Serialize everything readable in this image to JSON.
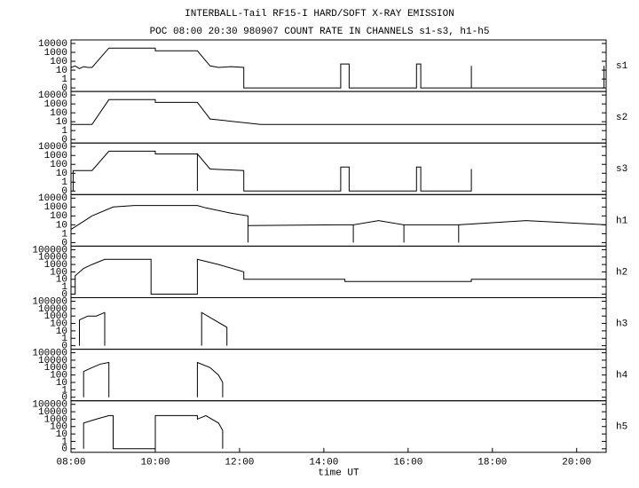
{
  "chart_data": [
    {
      "type": "line",
      "title": "INTERBALL-Tail RF15-I HARD/SOFT X-RAY EMISSION",
      "subtitle": "POC 08:00 20:30 980907  COUNT RATE IN CHANNELS s1-s3, h1-h5",
      "label": "s1",
      "log": true,
      "color": "#000000",
      "xlim": [
        8,
        20.7
      ],
      "ylim": [
        0,
        10000
      ],
      "yticks": [
        0,
        1,
        10,
        100,
        1000,
        10000
      ],
      "x": [
        8.0,
        8.1,
        8.2,
        8.3,
        8.4,
        8.5,
        8.9,
        10.0,
        10.0,
        11.0,
        11.3,
        11.5,
        11.8,
        12.1,
        12.1,
        14.4,
        14.4,
        14.6,
        14.6,
        16.2,
        16.2,
        16.3,
        16.3,
        17.5,
        17.5,
        17.5,
        20.65,
        20.65
      ],
      "values": [
        20,
        30,
        15,
        25,
        20,
        20,
        3000,
        3000,
        1500,
        1500,
        30,
        20,
        25,
        20,
        0,
        0,
        50,
        50,
        0,
        0,
        50,
        50,
        0,
        0,
        30,
        0,
        0,
        30
      ]
    },
    {
      "type": "line",
      "label": "s2",
      "log": true,
      "color": "#000000",
      "xlim": [
        8,
        20.7
      ],
      "ylim": [
        0,
        10000
      ],
      "yticks": [
        0,
        1,
        10,
        100,
        1000,
        10000
      ],
      "x": [
        8.0,
        8.5,
        8.9,
        10.0,
        10.0,
        11.0,
        11.3,
        12.5,
        13.0,
        14.5,
        16.0,
        18.0,
        20.7
      ],
      "values": [
        5,
        5,
        3000,
        3000,
        1500,
        1500,
        20,
        5,
        5,
        5,
        5,
        5,
        5
      ]
    },
    {
      "type": "line",
      "label": "s3",
      "log": true,
      "color": "#000000",
      "xlim": [
        8,
        20.7
      ],
      "ylim": [
        0,
        10000
      ],
      "yticks": [
        0,
        1,
        10,
        100,
        1000,
        10000
      ],
      "x": [
        8.05,
        8.05,
        8.5,
        8.9,
        10.0,
        10.0,
        11.0,
        11.0,
        11.0,
        11.3,
        12.1,
        12.1,
        14.4,
        14.4,
        14.6,
        14.6,
        16.2,
        16.2,
        16.3,
        16.3,
        17.5,
        17.5,
        17.5
      ],
      "values": [
        0,
        20,
        20,
        3000,
        3000,
        1500,
        1500,
        0,
        1500,
        30,
        20,
        0,
        0,
        50,
        50,
        0,
        0,
        50,
        50,
        0,
        0,
        30,
        0
      ]
    },
    {
      "type": "line",
      "label": "h1",
      "log": true,
      "color": "#000000",
      "xlim": [
        8,
        20.7
      ],
      "ylim": [
        0,
        10000
      ],
      "yticks": [
        0,
        1,
        10,
        100,
        1000,
        10000
      ],
      "x": [
        8.0,
        8.5,
        9.0,
        9.5,
        11.0,
        11.2,
        11.8,
        12.2,
        12.2,
        12.2,
        14.3,
        14.7,
        14.7,
        14.7,
        15.3,
        15.9,
        15.9,
        15.9,
        17.2,
        17.2,
        17.2,
        18.8,
        20.7
      ],
      "values": [
        3,
        100,
        1000,
        1500,
        1500,
        800,
        200,
        100,
        0,
        8,
        10,
        10,
        0,
        10,
        30,
        10,
        0,
        10,
        10,
        0,
        10,
        30,
        10
      ]
    },
    {
      "type": "line",
      "label": "h2",
      "log": true,
      "color": "#000000",
      "xlim": [
        8,
        20.7
      ],
      "ylim": [
        0,
        100000
      ],
      "yticks": [
        0,
        1,
        10,
        100,
        1000,
        10000,
        100000
      ],
      "x": [
        8.0,
        8.1,
        8.1,
        8.3,
        8.5,
        8.8,
        9.0,
        9.9,
        9.9,
        11.0,
        11.0,
        11.5,
        12.1,
        12.1,
        14.5,
        14.5,
        17.5,
        17.5,
        20.7
      ],
      "values": [
        0,
        0,
        30,
        300,
        1000,
        5000,
        5000,
        5000,
        0,
        0,
        5000,
        1000,
        100,
        10,
        10,
        5,
        5,
        10,
        10
      ]
    },
    {
      "type": "line",
      "label": "h3",
      "log": true,
      "color": "#000000",
      "xlim": [
        8,
        20.7
      ],
      "ylim": [
        0,
        100000
      ],
      "yticks": [
        0,
        1,
        10,
        100,
        1000,
        10000,
        100000
      ],
      "x": [
        8.2,
        8.2,
        8.4,
        8.6,
        8.8,
        8.8,
        10.0,
        11.1,
        11.1,
        11.4,
        11.7,
        11.7
      ],
      "values": [
        0,
        300,
        1000,
        1000,
        3000,
        0,
        null,
        0,
        3000,
        300,
        30,
        0
      ]
    },
    {
      "type": "line",
      "label": "h4",
      "log": true,
      "color": "#000000",
      "xlim": [
        8,
        20.7
      ],
      "ylim": [
        0,
        100000
      ],
      "yticks": [
        0,
        1,
        10,
        100,
        1000,
        10000,
        100000
      ],
      "x": [
        8.3,
        8.3,
        8.5,
        8.7,
        8.9,
        8.9,
        10.0,
        11.0,
        11.0,
        11.3,
        11.5,
        11.6,
        11.6
      ],
      "values": [
        0,
        300,
        1000,
        3000,
        5000,
        0,
        null,
        0,
        5000,
        1000,
        100,
        10,
        0
      ]
    },
    {
      "type": "line",
      "label": "h5",
      "log": true,
      "color": "#000000",
      "xlim": [
        8,
        20.7
      ],
      "ylim": [
        0,
        100000
      ],
      "yticks": [
        0,
        1,
        10,
        100,
        1000,
        10000,
        100000
      ],
      "x": [
        8.3,
        8.3,
        8.6,
        8.9,
        9.0,
        9.0,
        10.0,
        10.0,
        11.0,
        11.0,
        11.2,
        11.5,
        11.6,
        11.6
      ],
      "values": [
        0,
        300,
        1000,
        3000,
        3000,
        0,
        0,
        3000,
        3000,
        1000,
        3000,
        300,
        30,
        0
      ],
      "xlabel": "time UT",
      "xticks": [
        {
          "value": 8,
          "label": "08:00"
        },
        {
          "value": 10,
          "label": "10:00"
        },
        {
          "value": 12,
          "label": "12:00"
        },
        {
          "value": 14,
          "label": "14:00"
        },
        {
          "value": 16,
          "label": "16:00"
        },
        {
          "value": 18,
          "label": "18:00"
        },
        {
          "value": 20,
          "label": "20:00"
        }
      ]
    }
  ]
}
